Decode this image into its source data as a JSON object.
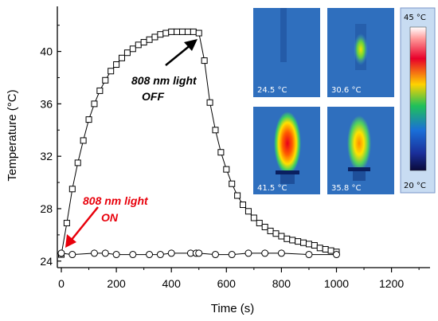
{
  "chart_data": {
    "type": "scatter",
    "xlabel": "Time (s)",
    "ylabel": "Temperature (°C)",
    "xlim": [
      0,
      1300
    ],
    "ylim": [
      23.5,
      43.5
    ],
    "xticks": [
      "0",
      "200",
      "400",
      "600",
      "800",
      "1000",
      "1200"
    ],
    "yticks": [
      "24",
      "28",
      "32",
      "36",
      "40"
    ],
    "series": [
      {
        "marker": "square",
        "x": [
          0,
          20,
          40,
          60,
          80,
          100,
          120,
          140,
          160,
          180,
          200,
          220,
          240,
          260,
          280,
          300,
          320,
          340,
          360,
          380,
          400,
          420,
          440,
          460,
          480,
          500,
          520,
          540,
          560,
          580,
          600,
          620,
          640,
          660,
          680,
          700,
          720,
          740,
          760,
          780,
          800,
          820,
          840,
          860,
          880,
          900,
          920,
          940,
          960,
          980,
          1000
        ],
        "y": [
          24.5,
          26.9,
          29.5,
          31.5,
          33.2,
          34.8,
          36.0,
          37.0,
          37.8,
          38.5,
          39.0,
          39.5,
          39.9,
          40.2,
          40.5,
          40.7,
          40.9,
          41.1,
          41.3,
          41.4,
          41.5,
          41.5,
          41.5,
          41.5,
          41.5,
          41.4,
          39.3,
          36.1,
          34.0,
          32.3,
          31.0,
          29.9,
          29.0,
          28.3,
          27.8,
          27.3,
          26.9,
          26.6,
          26.3,
          26.1,
          25.9,
          25.7,
          25.6,
          25.5,
          25.4,
          25.3,
          25.2,
          25.0,
          24.9,
          24.8,
          24.7
        ]
      },
      {
        "marker": "circle",
        "x": [
          0,
          40,
          120,
          160,
          200,
          260,
          320,
          360,
          400,
          470,
          490,
          500,
          560,
          620,
          680,
          740,
          800,
          900,
          1000
        ],
        "y": [
          24.6,
          24.5,
          24.6,
          24.6,
          24.5,
          24.5,
          24.5,
          24.5,
          24.6,
          24.6,
          24.6,
          24.6,
          24.5,
          24.5,
          24.6,
          24.6,
          24.6,
          24.5,
          24.5
        ]
      }
    ],
    "annotations": [
      {
        "line1": "808 nm light",
        "line2": "OFF",
        "color": "#000000"
      },
      {
        "line1": "808 nm light",
        "line2": "ON",
        "color": "#e8000b"
      }
    ],
    "thermal_images": [
      {
        "label": "24.5 °C"
      },
      {
        "label": "30.6 °C"
      },
      {
        "label": "41.5 °C"
      },
      {
        "label": "35.8 °C"
      }
    ],
    "color_scale": {
      "max_label": "45 °C",
      "min_label": "20 °C"
    }
  }
}
